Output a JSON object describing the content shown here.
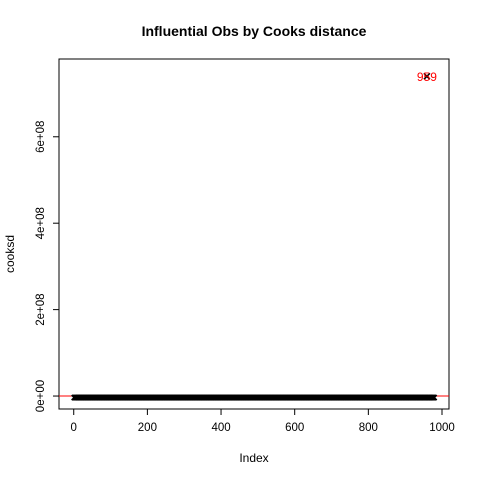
{
  "chart_data": {
    "type": "scatter",
    "title": "Influential Obs by Cooks distance",
    "xlabel": "Index",
    "ylabel": "cooksd",
    "xlim": [
      -40,
      1019
    ],
    "ylim": [
      -30000000,
      780000000
    ],
    "x_ticks": [
      0,
      200,
      400,
      600,
      800,
      1000
    ],
    "x_tick_labels": [
      "0",
      "200",
      "400",
      "600",
      "800",
      "1000"
    ],
    "y_ticks": [
      0,
      200000000,
      400000000,
      600000000
    ],
    "y_tick_labels": [
      "0e+00",
      "2e+08",
      "4e+08",
      "6e+08"
    ],
    "n_points": 979,
    "baseline_value": 0,
    "outlier": {
      "index": 959,
      "value": 740000000,
      "label": "959"
    },
    "cutoff_line_value": 0,
    "cutoff_color": "#ff0000",
    "point_color": "#000000",
    "annotation_color": "#ff0000",
    "grid": false
  }
}
